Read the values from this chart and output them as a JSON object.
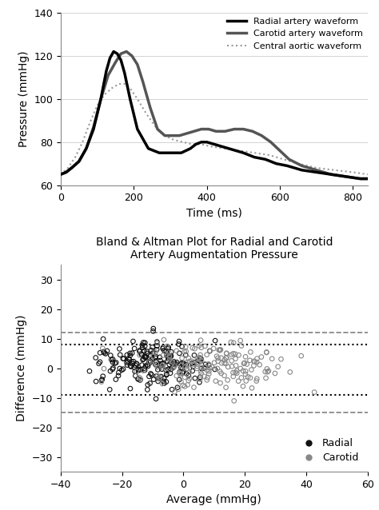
{
  "top_chart": {
    "ylabel": "Pressure (mmHg)",
    "xlabel": "Time (ms)",
    "ylim": [
      60,
      140
    ],
    "xlim": [
      0,
      840
    ],
    "yticks": [
      60,
      80,
      100,
      120,
      140
    ],
    "xticks": [
      0,
      200,
      400,
      600,
      800
    ],
    "radial": {
      "t": [
        0,
        15,
        30,
        50,
        70,
        90,
        110,
        125,
        135,
        145,
        155,
        165,
        175,
        190,
        210,
        240,
        270,
        300,
        330,
        355,
        370,
        385,
        400,
        420,
        440,
        460,
        480,
        500,
        530,
        560,
        590,
        620,
        660,
        700,
        740,
        780,
        820,
        840
      ],
      "p": [
        65,
        66,
        68,
        71,
        77,
        86,
        100,
        113,
        119,
        122,
        121,
        118,
        112,
        100,
        86,
        77,
        75,
        75,
        75,
        77,
        79,
        80,
        80,
        79,
        78,
        77,
        76,
        75,
        73,
        72,
        70,
        69,
        67,
        66,
        65,
        64,
        63,
        63
      ],
      "color": "#000000",
      "linewidth": 2.5,
      "linestyle": "solid",
      "label": "Radial artery waveform"
    },
    "carotid": {
      "t": [
        0,
        15,
        30,
        50,
        70,
        90,
        110,
        130,
        150,
        165,
        180,
        195,
        210,
        225,
        245,
        265,
        285,
        305,
        325,
        345,
        365,
        385,
        405,
        425,
        450,
        475,
        500,
        525,
        550,
        575,
        600,
        625,
        660,
        700,
        740,
        780,
        820,
        840
      ],
      "p": [
        65,
        66,
        68,
        71,
        77,
        87,
        100,
        111,
        117,
        121,
        122,
        120,
        116,
        108,
        96,
        86,
        83,
        83,
        83,
        84,
        85,
        86,
        86,
        85,
        85,
        86,
        86,
        85,
        83,
        80,
        76,
        72,
        69,
        67,
        65,
        64,
        63,
        63
      ],
      "color": "#555555",
      "linewidth": 2.5,
      "linestyle": "solid",
      "label": "Carotid artery waveform"
    },
    "aortic": {
      "t": [
        0,
        20,
        40,
        60,
        80,
        100,
        120,
        140,
        160,
        175,
        190,
        210,
        235,
        260,
        285,
        310,
        335,
        360,
        385,
        410,
        450,
        490,
        530,
        570,
        610,
        650,
        700,
        750,
        800,
        840
      ],
      "p": [
        65,
        68,
        73,
        80,
        89,
        97,
        102,
        105,
        107,
        107,
        105,
        100,
        93,
        87,
        83,
        81,
        80,
        79,
        79,
        78,
        77,
        76,
        75,
        74,
        72,
        70,
        68,
        67,
        66,
        65
      ],
      "color": "#999999",
      "linewidth": 1.5,
      "linestyle": "dotted",
      "label": "Central aortic waveform"
    }
  },
  "bottom_chart": {
    "title": "Bland & Altman Plot for Radial and Carotid\nArtery Augmentation Pressure",
    "xlabel": "Average (mmHg)",
    "ylabel": "Difference (mmHg)",
    "xlim": [
      -40,
      60
    ],
    "ylim": [
      -35,
      35
    ],
    "xticks": [
      -40,
      -20,
      0,
      20,
      40,
      60
    ],
    "yticks": [
      -30,
      -20,
      -10,
      0,
      10,
      20,
      30
    ],
    "line_upper_dashed": 12,
    "line_lower_dashed": -15,
    "line_upper_dotted": 8,
    "line_lower_dotted": -9,
    "radial_color": "#111111",
    "carotid_color": "#888888"
  }
}
